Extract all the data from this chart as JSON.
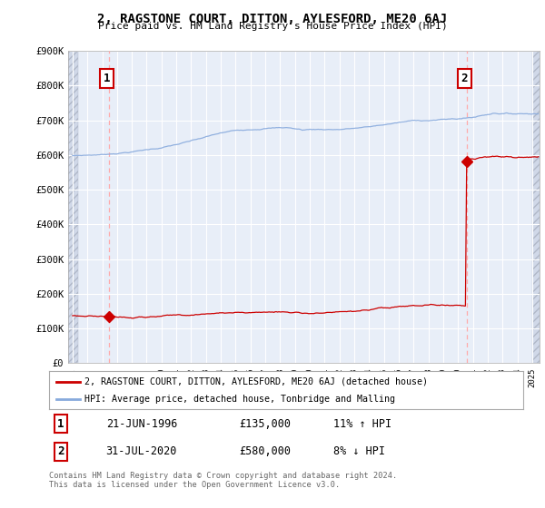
{
  "title": "2, RAGSTONE COURT, DITTON, AYLESFORD, ME20 6AJ",
  "subtitle": "Price paid vs. HM Land Registry's House Price Index (HPI)",
  "ylim": [
    0,
    900000
  ],
  "yticks": [
    0,
    100000,
    200000,
    300000,
    400000,
    500000,
    600000,
    700000,
    800000,
    900000
  ],
  "ytick_labels": [
    "£0",
    "£100K",
    "£200K",
    "£300K",
    "£400K",
    "£500K",
    "£600K",
    "£700K",
    "£800K",
    "£900K"
  ],
  "xlim_start": 1993.7,
  "xlim_end": 2025.5,
  "sale1_x": 1996.47,
  "sale1_y": 135000,
  "sale1_label": "1",
  "sale2_x": 2020.58,
  "sale2_y": 580000,
  "sale2_label": "2",
  "sale_color": "#cc0000",
  "hpi_color": "#88aadd",
  "vline_color": "#ffaaaa",
  "legend_label1": "2, RAGSTONE COURT, DITTON, AYLESFORD, ME20 6AJ (detached house)",
  "legend_label2": "HPI: Average price, detached house, Tonbridge and Malling",
  "table_row1": [
    "1",
    "21-JUN-1996",
    "£135,000",
    "11% ↑ HPI"
  ],
  "table_row2": [
    "2",
    "31-JUL-2020",
    "£580,000",
    "8% ↓ HPI"
  ],
  "footer": "Contains HM Land Registry data © Crown copyright and database right 2024.\nThis data is licensed under the Open Government Licence v3.0.",
  "plot_bg_color": "#e8eef8"
}
